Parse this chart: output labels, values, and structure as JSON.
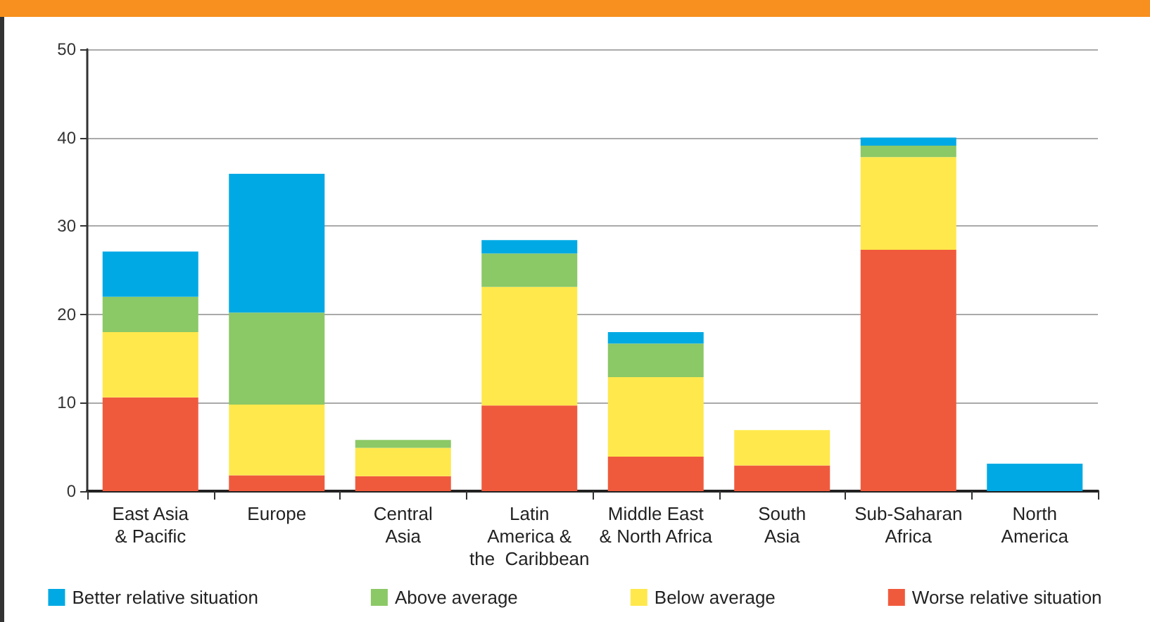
{
  "chart_data": {
    "type": "bar",
    "stacked": true,
    "categories": [
      "East Asia\n& Pacific",
      "Europe",
      "Central\nAsia",
      "Latin\nAmerica &\nthe  Caribbean",
      "Middle East\n& North Africa",
      "South\nAsia",
      "Sub-Saharan\nAfrica",
      "North\nAmerica"
    ],
    "series": [
      {
        "name": "Worse relative situation",
        "color": "#f05a3c",
        "values": [
          10.6,
          1.8,
          1.7,
          9.7,
          3.9,
          2.9,
          27.3,
          null
        ]
      },
      {
        "name": "Below average",
        "color": "#ffe84c",
        "values": [
          7.4,
          8.0,
          3.2,
          13.4,
          9.0,
          4.0,
          10.5,
          null
        ]
      },
      {
        "name": "Above average",
        "color": "#8bc866",
        "values": [
          4.0,
          10.4,
          0.9,
          3.8,
          3.8,
          null,
          1.3,
          null
        ]
      },
      {
        "name": "Better relative situation",
        "color": "#00a9e4",
        "values": [
          5.1,
          15.7,
          null,
          1.5,
          1.3,
          null,
          0.9,
          3.1
        ]
      }
    ],
    "ylim": [
      0,
      50
    ],
    "yticks": [
      0,
      10,
      20,
      30,
      40,
      50
    ],
    "grid": "y",
    "legend": "bottom"
  }
}
